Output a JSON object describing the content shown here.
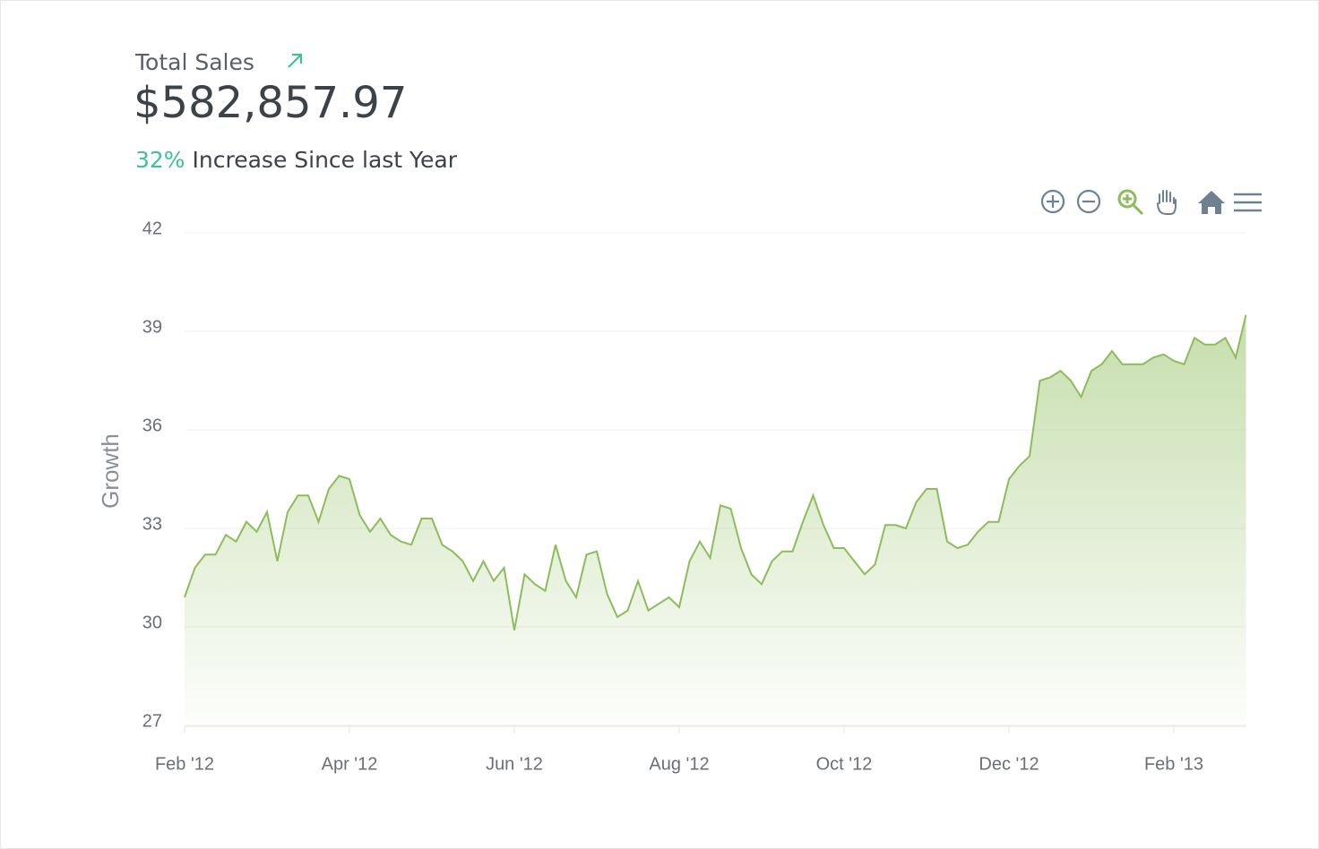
{
  "header": {
    "title": "Total Sales",
    "amount": "$582,857.97",
    "percent": "32%",
    "caption": "Increase Since last Year"
  },
  "chart_data": {
    "type": "area",
    "y_label": "Growth",
    "color": "#8cbd5a",
    "grid": true,
    "ylim": [
      27,
      42
    ],
    "yticks": [
      27,
      30,
      33,
      36,
      39,
      42
    ],
    "categories": [
      "Feb '12",
      null,
      null,
      null,
      null,
      null,
      null,
      null,
      null,
      null,
      null,
      null,
      null,
      null,
      null,
      null,
      "Apr '12",
      null,
      null,
      null,
      null,
      null,
      null,
      null,
      null,
      null,
      null,
      null,
      null,
      null,
      null,
      null,
      "Jun '12",
      null,
      null,
      null,
      null,
      null,
      null,
      null,
      null,
      null,
      null,
      null,
      null,
      null,
      null,
      null,
      "Aug '12",
      null,
      null,
      null,
      null,
      null,
      null,
      null,
      null,
      null,
      null,
      null,
      null,
      null,
      null,
      null,
      "Oct '12",
      null,
      null,
      null,
      null,
      null,
      null,
      null,
      null,
      null,
      null,
      null,
      null,
      null,
      null,
      null,
      "Dec '12",
      null,
      null,
      null,
      null,
      null,
      null,
      null,
      null,
      null,
      null,
      null,
      null,
      null,
      null,
      null,
      "Feb '13",
      null,
      null,
      null,
      null,
      null,
      null,
      null
    ],
    "values": [
      30.9,
      31.8,
      32.2,
      32.2,
      32.8,
      32.6,
      33.2,
      32.9,
      33.5,
      32.0,
      33.5,
      34.0,
      34.0,
      33.2,
      34.2,
      34.6,
      34.5,
      33.4,
      32.9,
      33.3,
      32.8,
      32.6,
      32.5,
      33.3,
      33.3,
      32.5,
      32.3,
      32.0,
      31.4,
      32.0,
      31.4,
      31.8,
      29.9,
      31.6,
      31.3,
      31.1,
      32.5,
      31.4,
      30.9,
      32.2,
      32.3,
      31.0,
      30.3,
      30.5,
      31.4,
      30.5,
      30.7,
      30.9,
      30.6,
      32.0,
      32.6,
      32.1,
      33.7,
      33.6,
      32.4,
      31.6,
      31.3,
      32.0,
      32.3,
      32.3,
      33.2,
      34.0,
      33.1,
      32.4,
      32.4,
      32.0,
      31.6,
      31.9,
      33.1,
      33.1,
      33.0,
      33.8,
      34.2,
      34.2,
      32.6,
      32.4,
      32.5,
      32.9,
      33.2,
      33.2,
      34.5,
      34.9,
      35.2,
      37.5,
      37.6,
      37.8,
      37.5,
      37.0,
      37.8,
      38.0,
      38.4,
      38.0,
      38.0,
      38.0,
      38.2,
      38.3,
      38.1,
      38.0,
      38.8,
      38.6,
      38.6,
      38.8,
      38.2,
      39.5
    ]
  }
}
